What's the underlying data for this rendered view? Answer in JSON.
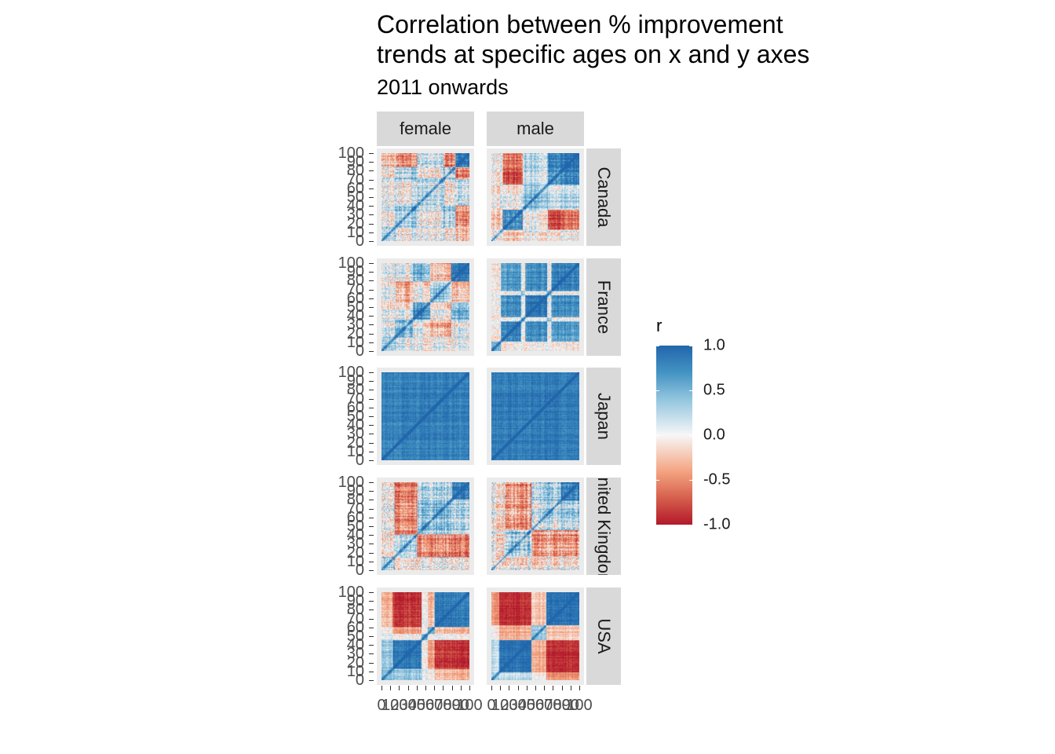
{
  "chart_data": {
    "type": "heatmap",
    "title": "Correlation between % improvement\ntrends at specific ages on x and y axes",
    "subtitle": "2011 onwards",
    "facet_columns": [
      "female",
      "male"
    ],
    "facet_rows": [
      "Canada",
      "France",
      "Japan",
      "United Kingdom",
      "USA"
    ],
    "x": {
      "label": "",
      "range": [
        0,
        100
      ],
      "ticks": [
        "0",
        "10",
        "20",
        "30",
        "40",
        "50",
        "60",
        "70",
        "80",
        "90",
        "100"
      ]
    },
    "y": {
      "label": "",
      "range": [
        0,
        100
      ],
      "ticks": [
        "0",
        "10",
        "20",
        "30",
        "40",
        "50",
        "60",
        "70",
        "80",
        "90",
        "100"
      ]
    },
    "fill": {
      "name": "r",
      "range": [
        -1,
        1
      ],
      "palette": "RdBu",
      "legend_ticks": [
        "1.0",
        "0.5",
        "0.0",
        "-0.5",
        "-1.0"
      ],
      "colors": {
        "high": "#2166ac",
        "mid": "#f7f7f7",
        "low": "#b2182b"
      }
    },
    "legend_position": "right",
    "panels": [
      {
        "country": "Canada",
        "sex": "female",
        "pattern": "mixed, weak red/blue stripes; blue block ages 85-100"
      },
      {
        "country": "Canada",
        "sex": "male",
        "pattern": "red bands ages 15-35 and 65-85, blue blocks 75-100 and 25-40"
      },
      {
        "country": "France",
        "sex": "female",
        "pattern": "blue blocks 40-55 and 80-100, weak red elsewhere"
      },
      {
        "country": "France",
        "sex": "male",
        "pattern": "mostly blue blocks, light stripes at 35 and 65"
      },
      {
        "country": "Japan",
        "sex": "female",
        "pattern": "almost uniformly strong positive (blue)"
      },
      {
        "country": "Japan",
        "sex": "male",
        "pattern": "almost uniformly strong positive (blue)"
      },
      {
        "country": "United Kingdom",
        "sex": "female",
        "pattern": "red 15-40 vs 40-80, blue block 85-100"
      },
      {
        "country": "United Kingdom",
        "sex": "male",
        "pattern": "mixed red/blue, blue block 80-100"
      },
      {
        "country": "USA",
        "sex": "female",
        "pattern": "blue blocks 15-45 and 60-100, red cross-blocks"
      },
      {
        "country": "USA",
        "sex": "male",
        "pattern": "blue blocks 10-45 and 65-100, strong red cross-blocks"
      }
    ]
  }
}
